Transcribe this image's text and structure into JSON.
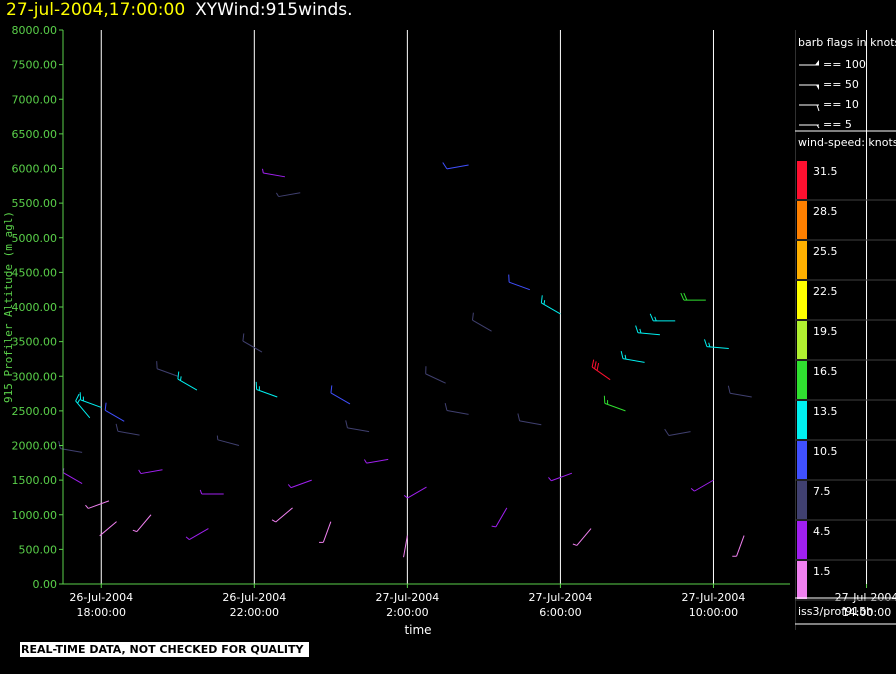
{
  "title": {
    "timestamp": "27-jul-2004,17:00:00",
    "product": "XYWind:915winds."
  },
  "qc_notice": "REAL-TIME DATA, NOT CHECKED FOR QUALITY",
  "source_label": "iss3/prof915h",
  "barb_legend": {
    "title": "barb flags in knots",
    "entries": [
      "== 100",
      "== 50",
      "== 10",
      "== 5"
    ]
  },
  "speed_legend": {
    "title": "wind-speed: knots",
    "levels": [
      {
        "label": "31.5",
        "color": "#ff1030"
      },
      {
        "label": "28.5",
        "color": "#ff8000"
      },
      {
        "label": "25.5",
        "color": "#ffb000"
      },
      {
        "label": "22.5",
        "color": "#ffff00"
      },
      {
        "label": "19.5",
        "color": "#b0f030"
      },
      {
        "label": "16.5",
        "color": "#30e030"
      },
      {
        "label": "13.5",
        "color": "#00f0f0"
      },
      {
        "label": "10.5",
        "color": "#4050ff"
      },
      {
        "label": "7.5",
        "color": "#404070"
      },
      {
        "label": "4.5",
        "color": "#a020f0"
      },
      {
        "label": "1.5",
        "color": "#f080f0"
      }
    ]
  },
  "chart_data": {
    "type": "wind-barb",
    "ylabel": "915 Profiler Altitude (m agl)",
    "xlabel": "time",
    "ylim": [
      0,
      8000
    ],
    "yticks": [
      "0.00",
      "500.00",
      "1000.00",
      "1500.00",
      "2000.00",
      "2500.00",
      "3000.00",
      "3500.00",
      "4000.00",
      "4500.00",
      "5000.00",
      "5500.00",
      "6000.00",
      "6500.00",
      "7000.00",
      "7500.00",
      "8000.00"
    ],
    "xticks": [
      {
        "date": "26-Jul-2004",
        "time": "18:00:00"
      },
      {
        "date": "26-Jul-2004",
        "time": "22:00:00"
      },
      {
        "date": "27-Jul-2004",
        "time": "2:00:00"
      },
      {
        "date": "27-Jul-2004",
        "time": "6:00:00"
      },
      {
        "date": "27-Jul-2004",
        "time": "10:00:00"
      },
      {
        "date": "27-Jul-2004",
        "time": "14:00:00"
      }
    ],
    "x_range_hours": [
      -1,
      18
    ],
    "grid": "vertical-at-xticks",
    "colors": {
      "axis": "#5ad04a",
      "grid": "#ffffff"
    },
    "barbs": [
      {
        "t": -0.5,
        "alt": 1450,
        "dir": 300,
        "spd": 6
      },
      {
        "t": -0.5,
        "alt": 1900,
        "dir": 280,
        "spd": 9
      },
      {
        "t": -0.3,
        "alt": 2400,
        "dir": 320,
        "spd": 13
      },
      {
        "t": 0.0,
        "alt": 2550,
        "dir": 290,
        "spd": 15
      },
      {
        "t": 0.2,
        "alt": 1200,
        "dir": 250,
        "spd": 3
      },
      {
        "t": 0.4,
        "alt": 900,
        "dir": 230,
        "spd": 2
      },
      {
        "t": 0.6,
        "alt": 2350,
        "dir": 300,
        "spd": 12
      },
      {
        "t": 1.0,
        "alt": 2150,
        "dir": 280,
        "spd": 9
      },
      {
        "t": 1.3,
        "alt": 1000,
        "dir": 220,
        "spd": 3
      },
      {
        "t": 1.6,
        "alt": 1650,
        "dir": 260,
        "spd": 5
      },
      {
        "t": 2.0,
        "alt": 3000,
        "dir": 290,
        "spd": 8
      },
      {
        "t": 2.5,
        "alt": 2800,
        "dir": 300,
        "spd": 13
      },
      {
        "t": 2.8,
        "alt": 800,
        "dir": 240,
        "spd": 4
      },
      {
        "t": 3.2,
        "alt": 1300,
        "dir": 270,
        "spd": 6
      },
      {
        "t": 3.6,
        "alt": 2000,
        "dir": 285,
        "spd": 7
      },
      {
        "t": 4.2,
        "alt": 3350,
        "dir": 300,
        "spd": 9
      },
      {
        "t": 4.6,
        "alt": 2700,
        "dir": 290,
        "spd": 13
      },
      {
        "t": 4.8,
        "alt": 5880,
        "dir": 280,
        "spd": 5
      },
      {
        "t": 5.2,
        "alt": 5650,
        "dir": 260,
        "spd": 7
      },
      {
        "t": 5.0,
        "alt": 1100,
        "dir": 230,
        "spd": 3
      },
      {
        "t": 5.5,
        "alt": 1500,
        "dir": 250,
        "spd": 5
      },
      {
        "t": 6.0,
        "alt": 900,
        "dir": 200,
        "spd": 3
      },
      {
        "t": 6.5,
        "alt": 2600,
        "dir": 300,
        "spd": 12
      },
      {
        "t": 7.0,
        "alt": 2200,
        "dir": 280,
        "spd": 8
      },
      {
        "t": 7.5,
        "alt": 1800,
        "dir": 260,
        "spd": 6
      },
      {
        "t": 8.0,
        "alt": 700,
        "dir": 190,
        "spd": 2
      },
      {
        "t": 8.5,
        "alt": 1400,
        "dir": 240,
        "spd": 5
      },
      {
        "t": 9.0,
        "alt": 2900,
        "dir": 295,
        "spd": 9
      },
      {
        "t": 9.6,
        "alt": 6050,
        "dir": 260,
        "spd": 10
      },
      {
        "t": 9.6,
        "alt": 2450,
        "dir": 280,
        "spd": 9
      },
      {
        "t": 10.2,
        "alt": 3650,
        "dir": 300,
        "spd": 9
      },
      {
        "t": 10.6,
        "alt": 1100,
        "dir": 210,
        "spd": 4
      },
      {
        "t": 11.2,
        "alt": 4250,
        "dir": 290,
        "spd": 10
      },
      {
        "t": 11.5,
        "alt": 2300,
        "dir": 280,
        "spd": 8
      },
      {
        "t": 12.0,
        "alt": 3900,
        "dir": 300,
        "spd": 13
      },
      {
        "t": 12.3,
        "alt": 1600,
        "dir": 250,
        "spd": 6
      },
      {
        "t": 12.8,
        "alt": 800,
        "dir": 220,
        "spd": 3
      },
      {
        "t": 13.3,
        "alt": 2950,
        "dir": 305,
        "spd": 31
      },
      {
        "t": 13.7,
        "alt": 2500,
        "dir": 290,
        "spd": 16
      },
      {
        "t": 14.2,
        "alt": 3200,
        "dir": 280,
        "spd": 14
      },
      {
        "t": 14.6,
        "alt": 3600,
        "dir": 275,
        "spd": 14
      },
      {
        "t": 15.0,
        "alt": 3800,
        "dir": 270,
        "spd": 13
      },
      {
        "t": 15.4,
        "alt": 2200,
        "dir": 260,
        "spd": 9
      },
      {
        "t": 15.8,
        "alt": 4100,
        "dir": 270,
        "spd": 18
      },
      {
        "t": 16.0,
        "alt": 1500,
        "dir": 240,
        "spd": 6
      },
      {
        "t": 16.4,
        "alt": 3400,
        "dir": 275,
        "spd": 13
      },
      {
        "t": 16.8,
        "alt": 700,
        "dir": 200,
        "spd": 3
      },
      {
        "t": 17.0,
        "alt": 2700,
        "dir": 280,
        "spd": 9
      }
    ]
  }
}
